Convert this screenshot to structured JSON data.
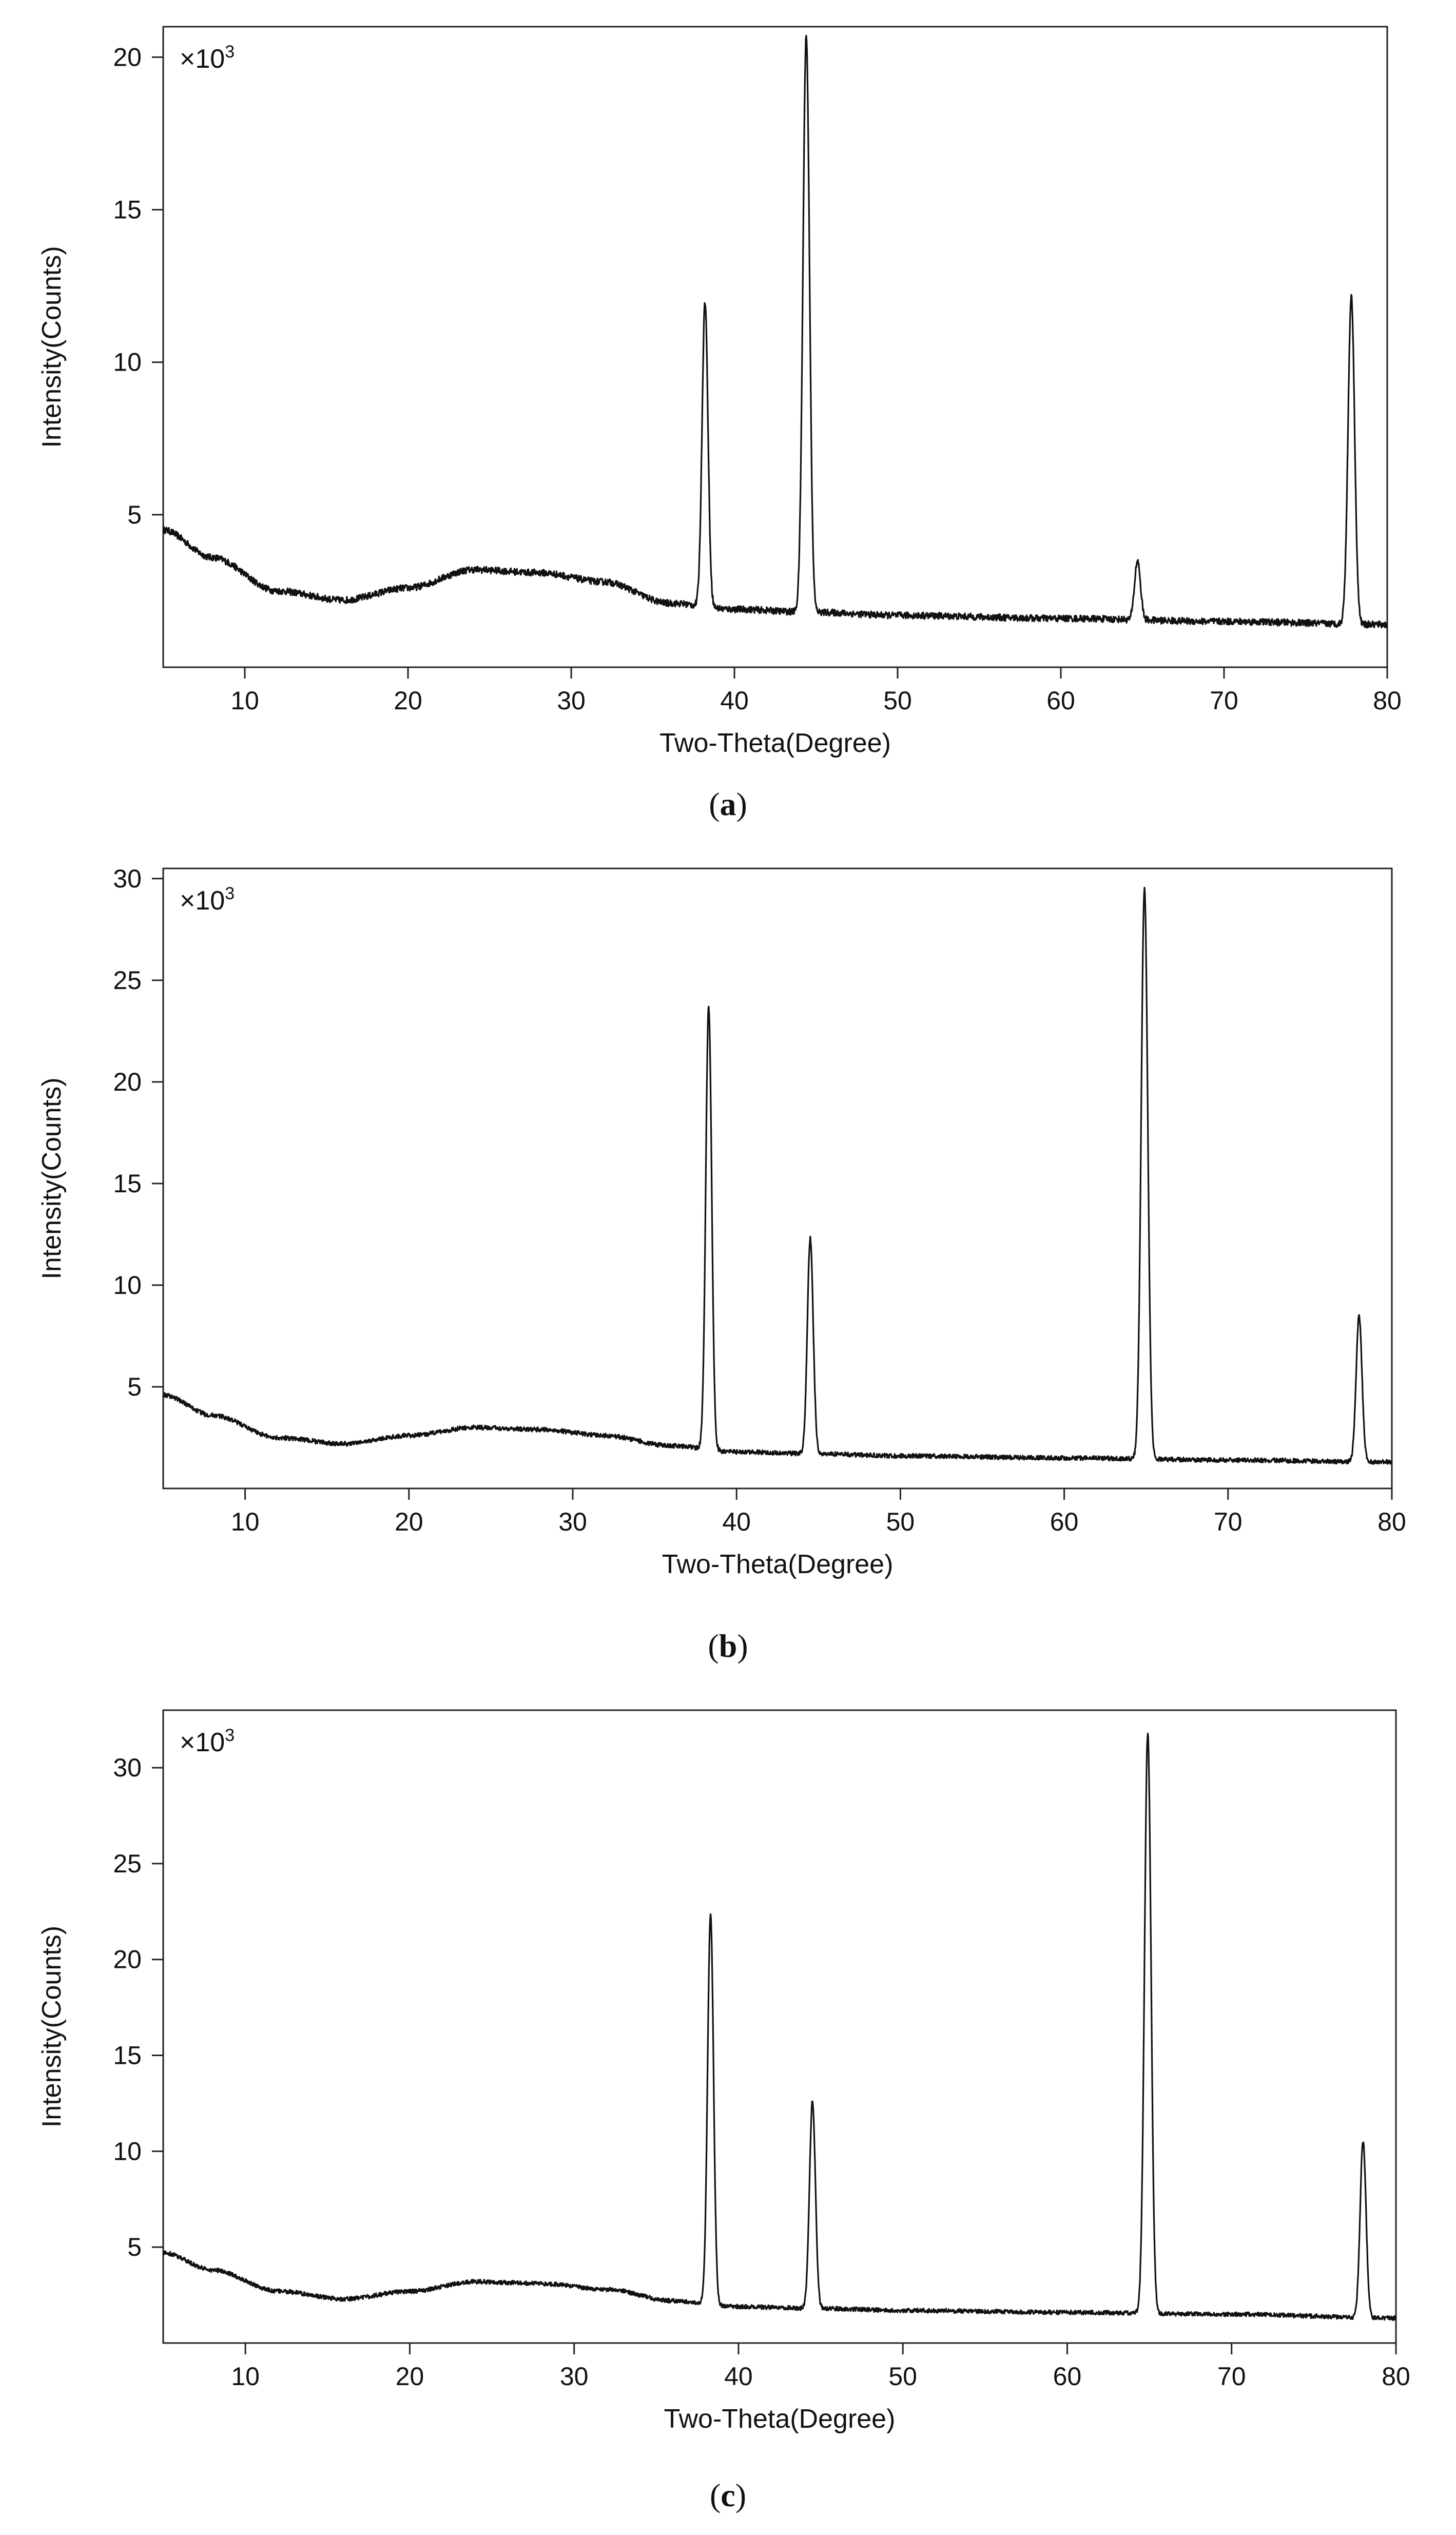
{
  "chart_data": [
    {
      "type": "line",
      "panel_label": "a",
      "multiplier": "×10",
      "multiplier_exp": "3",
      "xlabel": "Two-Theta(Degree)",
      "ylabel": "Intensity(Counts)",
      "xlim": [
        5,
        80
      ],
      "ylim": [
        0,
        21
      ],
      "xticks": [
        10,
        20,
        30,
        40,
        50,
        60,
        70,
        80
      ],
      "yticks": [
        5,
        10,
        15,
        20
      ],
      "baseline": [
        [
          5,
          4.5
        ],
        [
          8,
          3.6
        ],
        [
          12,
          2.5
        ],
        [
          16,
          2.2
        ],
        [
          20,
          2.6
        ],
        [
          24,
          3.2
        ],
        [
          28,
          3.1
        ],
        [
          32,
          2.8
        ],
        [
          36,
          2.1
        ],
        [
          40,
          1.9
        ],
        [
          45,
          1.8
        ],
        [
          50,
          1.7
        ],
        [
          60,
          1.6
        ],
        [
          70,
          1.5
        ],
        [
          80,
          1.4
        ]
      ],
      "peaks": [
        {
          "x": 38.2,
          "y": 12.0,
          "w": 0.18
        },
        {
          "x": 44.4,
          "y": 20.7,
          "w": 0.2
        },
        {
          "x": 64.7,
          "y": 3.5,
          "w": 0.18
        },
        {
          "x": 77.8,
          "y": 12.2,
          "w": 0.2
        }
      ]
    },
    {
      "type": "line",
      "panel_label": "b",
      "multiplier": "×10",
      "multiplier_exp": "3",
      "xlabel": "Two-Theta(Degree)",
      "ylabel": "Intensity(Counts)",
      "xlim": [
        5,
        80
      ],
      "ylim": [
        0,
        30.5
      ],
      "xticks": [
        10,
        20,
        30,
        40,
        50,
        60,
        70,
        80
      ],
      "yticks": [
        5,
        10,
        15,
        20,
        25,
        30
      ],
      "baseline": [
        [
          5,
          4.6
        ],
        [
          8,
          3.6
        ],
        [
          12,
          2.5
        ],
        [
          16,
          2.2
        ],
        [
          20,
          2.6
        ],
        [
          24,
          3.0
        ],
        [
          28,
          2.9
        ],
        [
          32,
          2.6
        ],
        [
          36,
          2.1
        ],
        [
          40,
          1.8
        ],
        [
          45,
          1.7
        ],
        [
          50,
          1.6
        ],
        [
          60,
          1.5
        ],
        [
          70,
          1.4
        ],
        [
          80,
          1.3
        ]
      ],
      "peaks": [
        {
          "x": 38.3,
          "y": 23.7,
          "w": 0.18
        },
        {
          "x": 44.5,
          "y": 12.3,
          "w": 0.18
        },
        {
          "x": 64.9,
          "y": 29.5,
          "w": 0.2
        },
        {
          "x": 78.0,
          "y": 8.5,
          "w": 0.18
        }
      ]
    },
    {
      "type": "line",
      "panel_label": "c",
      "multiplier": "×10",
      "multiplier_exp": "3",
      "xlabel": "Two-Theta(Degree)",
      "ylabel": "Intensity(Counts)",
      "xlim": [
        5,
        80
      ],
      "ylim": [
        0,
        33
      ],
      "xticks": [
        10,
        20,
        30,
        40,
        50,
        60,
        70,
        80
      ],
      "yticks": [
        5,
        10,
        15,
        20,
        25,
        30
      ],
      "baseline": [
        [
          5,
          4.7
        ],
        [
          8,
          3.8
        ],
        [
          12,
          2.7
        ],
        [
          16,
          2.3
        ],
        [
          20,
          2.7
        ],
        [
          24,
          3.2
        ],
        [
          28,
          3.1
        ],
        [
          32,
          2.8
        ],
        [
          36,
          2.2
        ],
        [
          40,
          1.9
        ],
        [
          45,
          1.8
        ],
        [
          50,
          1.7
        ],
        [
          60,
          1.6
        ],
        [
          70,
          1.5
        ],
        [
          80,
          1.3
        ]
      ],
      "peaks": [
        {
          "x": 38.3,
          "y": 22.4,
          "w": 0.18
        },
        {
          "x": 44.5,
          "y": 12.6,
          "w": 0.18
        },
        {
          "x": 64.9,
          "y": 31.8,
          "w": 0.2
        },
        {
          "x": 78.0,
          "y": 10.5,
          "w": 0.18
        }
      ]
    }
  ]
}
